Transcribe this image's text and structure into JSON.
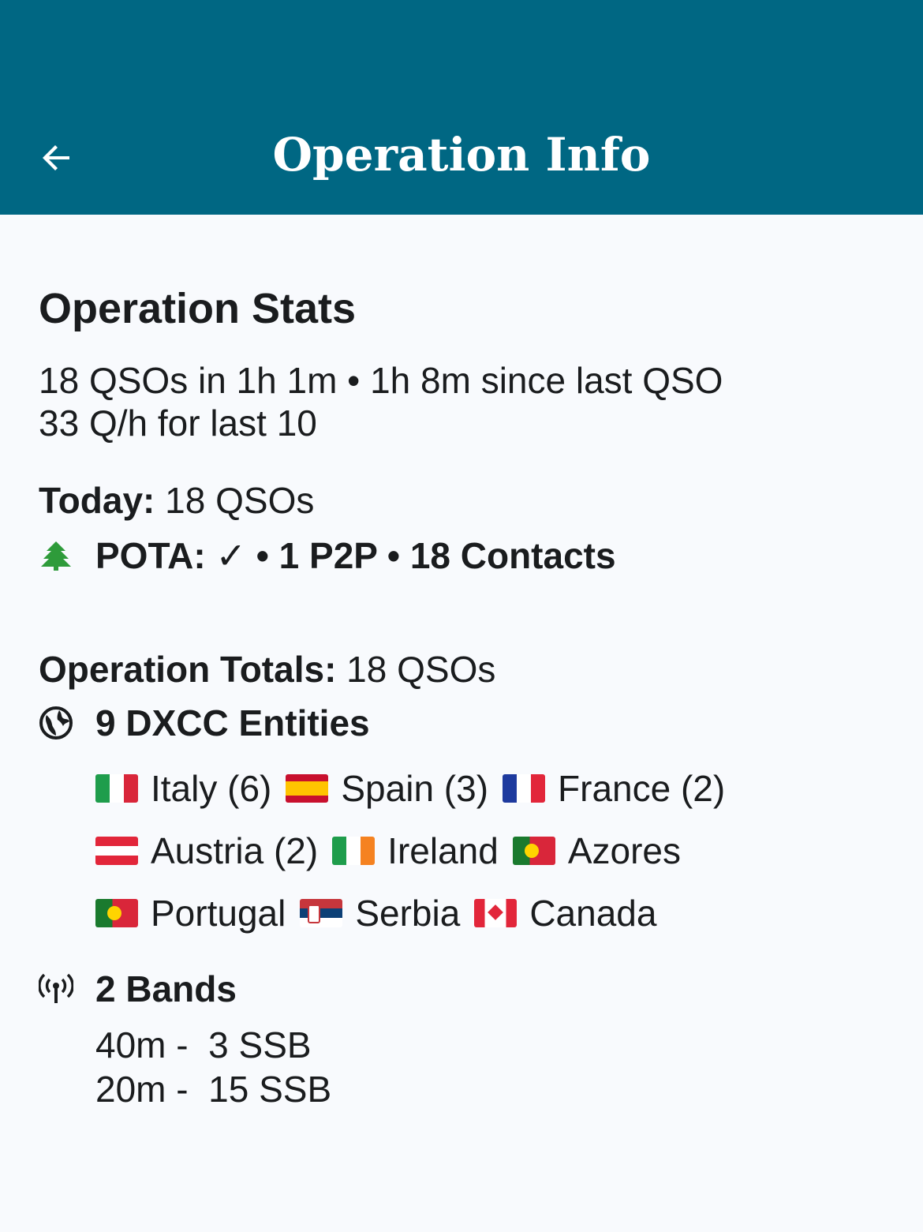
{
  "appbar": {
    "title": "Operation Info",
    "back_icon": "arrow-back-icon"
  },
  "stats": {
    "title": "Operation Stats",
    "line1": "18 QSOs in 1h 1m • 1h 8m since last QSO",
    "line2": "33 Q/h for last 10"
  },
  "today": {
    "label": "Today:",
    "value": " 18 QSOs",
    "pota": "POTA: ✓ • 1 P2P • 18 Contacts"
  },
  "totals": {
    "label": "Operation Totals:",
    "value": " 18 QSOs",
    "dxcc": "9 DXCC Entities",
    "countries": [
      {
        "name": "Italy (6)",
        "flag": "IT"
      },
      {
        "name": "Spain (3)",
        "flag": "ES"
      },
      {
        "name": "France (2)",
        "flag": "FR"
      },
      {
        "name": "Austria (2)",
        "flag": "AT"
      },
      {
        "name": "Ireland",
        "flag": "IE"
      },
      {
        "name": "Azores",
        "flag": "PT"
      },
      {
        "name": "Portugal",
        "flag": "PT"
      },
      {
        "name": "Serbia",
        "flag": "RS"
      },
      {
        "name": "Canada",
        "flag": "CA"
      }
    ]
  },
  "bands": {
    "title": "2 Bands",
    "items": [
      "40m -  3 SSB",
      "20m -  15 SSB"
    ]
  },
  "colors": {
    "appbar": "#006783",
    "pota_tree": "#2e9b3a"
  }
}
